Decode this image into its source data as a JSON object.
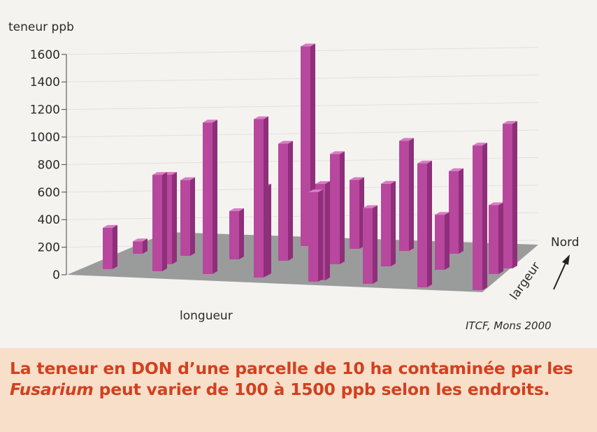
{
  "chart_data": {
    "type": "bar",
    "title": "",
    "ylabel": "teneur ppb",
    "xlabel": "longueur",
    "depth_label": "largeur",
    "direction_label": "Nord",
    "credit": "ITCF, Mons 2000",
    "ylim": [
      0,
      1600
    ],
    "yticks": [
      0,
      200,
      400,
      600,
      800,
      1000,
      1200,
      1400,
      1600
    ],
    "grid": true,
    "series": [
      {
        "values": [
          300,
          90,
          700,
          550,
          1100,
          350,
          1150,
          850,
          1450,
          650,
          800,
          500,
          550,
          600,
          800,
          900,
          400,
          1050
        ]
      },
      {
        "values": [
          650,
          650,
          700,
          600,
          500,
          1050
        ]
      }
    ]
  },
  "caption": {
    "part1": "La teneur en DON d’une parcelle de 10 ha contaminée par les ",
    "italic": "Fusarium",
    "part2": " peut varier de 100 à 1500 ppb selon les endroits."
  },
  "colors": {
    "bar_front": "#b8479e",
    "bar_side": "#8e2f79",
    "bar_top": "#d77cc4",
    "floor": "#9a9c9c",
    "caption_bg": "#f7dfc9",
    "caption_text": "#d2401f"
  }
}
